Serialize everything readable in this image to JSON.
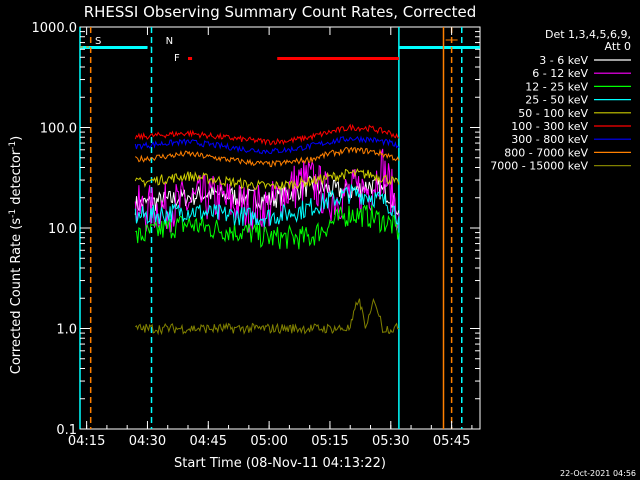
{
  "chart_data": {
    "type": "line",
    "title": "RHESSI Observing Summary Count Rates, Corrected",
    "xlabel": "Start Time (08-Nov-11 04:13:22)",
    "ylabel": "Corrected Count Rate (s⁻¹ detector⁻¹)",
    "ylabel_main": "Corrected Count Rate (s",
    "ylabel_sup1": "-1",
    "ylabel_mid": " detector",
    "ylabel_sup2": "-1",
    "ylabel_end": ")",
    "yscale": "log",
    "ylim": [
      0.1,
      1000
    ],
    "xlim": [
      "04:13:22",
      "05:52:00"
    ],
    "xticks": [
      "04:15",
      "04:30",
      "04:45",
      "05:00",
      "05:15",
      "05:30",
      "05:45"
    ],
    "yticks": [
      "0.1",
      "1.0",
      "10.0",
      "100.0",
      "1000.0"
    ],
    "legend_header": [
      "Det 1,3,4,5,6,9,",
      "Att 0"
    ],
    "legend_position": "top-right, outside plot",
    "series": [
      {
        "name": "3 - 6 keV",
        "color": "#ffffff",
        "t": [
          "04:27",
          "04:35",
          "04:45",
          "04:55",
          "05:00",
          "05:05",
          "05:10",
          "05:15",
          "05:20",
          "05:25",
          "05:30",
          "05:32"
        ],
        "values": [
          17,
          19,
          22,
          20,
          19,
          22,
          26,
          24,
          23,
          27,
          21,
          15
        ]
      },
      {
        "name": "6 - 12 keV",
        "color": "#ff00ff",
        "t": [
          "04:27",
          "04:35",
          "04:45",
          "04:55",
          "05:00",
          "05:05",
          "05:10",
          "05:15",
          "05:20",
          "05:25",
          "05:28",
          "05:32"
        ],
        "values": [
          15,
          16,
          20,
          16,
          16,
          25,
          30,
          20,
          22,
          25,
          40,
          14
        ]
      },
      {
        "name": "12 - 25 keV",
        "color": "#00ff00",
        "t": [
          "04:27",
          "04:35",
          "04:40",
          "04:45",
          "04:55",
          "05:00",
          "05:05",
          "05:10",
          "05:15",
          "05:20",
          "05:25",
          "05:30",
          "05:32"
        ],
        "values": [
          8,
          10,
          11,
          10,
          9,
          8,
          8,
          8,
          11,
          14,
          13,
          11,
          9
        ]
      },
      {
        "name": "25 - 50 keV",
        "color": "#00ffff",
        "t": [
          "04:27",
          "04:35",
          "04:40",
          "04:45",
          "04:55",
          "05:00",
          "05:05",
          "05:10",
          "05:15",
          "05:20",
          "05:25",
          "05:30",
          "05:32"
        ],
        "values": [
          13,
          14,
          15,
          14,
          13,
          13,
          14,
          16,
          19,
          22,
          21,
          17,
          13
        ]
      },
      {
        "name": "50 - 100 keV",
        "color": "#cccc00",
        "t": [
          "04:27",
          "04:35",
          "04:40",
          "04:45",
          "04:55",
          "05:00",
          "05:05",
          "05:10",
          "05:15",
          "05:20",
          "05:25",
          "05:30",
          "05:32"
        ],
        "values": [
          28,
          31,
          33,
          31,
          27,
          26,
          27,
          29,
          32,
          35,
          34,
          30,
          27
        ]
      },
      {
        "name": "100 - 300 keV",
        "color": "#ff0000",
        "t": [
          "04:27",
          "04:35",
          "04:40",
          "04:45",
          "04:55",
          "05:00",
          "05:05",
          "05:10",
          "05:15",
          "05:20",
          "05:25",
          "05:30",
          "05:32"
        ],
        "values": [
          80,
          85,
          88,
          83,
          75,
          72,
          74,
          80,
          90,
          100,
          98,
          88,
          78
        ]
      },
      {
        "name": "300 - 800 keV",
        "color": "#0000ff",
        "t": [
          "04:27",
          "04:35",
          "04:40",
          "04:45",
          "04:55",
          "05:00",
          "05:05",
          "05:10",
          "05:15",
          "05:20",
          "05:25",
          "05:30",
          "05:32"
        ],
        "values": [
          65,
          70,
          72,
          68,
          60,
          58,
          60,
          65,
          72,
          78,
          76,
          70,
          63
        ]
      },
      {
        "name": "800 - 7000 keV",
        "color": "#ff8000",
        "t": [
          "04:27",
          "04:35",
          "04:40",
          "04:45",
          "04:55",
          "05:00",
          "05:05",
          "05:10",
          "05:15",
          "05:20",
          "05:25",
          "05:30",
          "05:32"
        ],
        "values": [
          48,
          52,
          55,
          51,
          45,
          43,
          45,
          48,
          55,
          60,
          58,
          52,
          47
        ]
      },
      {
        "name": "7000 - 15000 keV",
        "color": "#808000",
        "t": [
          "04:27",
          "04:40",
          "04:45",
          "04:55",
          "05:00",
          "05:05",
          "05:10",
          "05:15",
          "05:20",
          "05:22",
          "05:24",
          "05:26",
          "05:28",
          "05:30",
          "05:32"
        ],
        "values": [
          1.0,
          1.0,
          1.0,
          1.0,
          1.0,
          1.0,
          1.0,
          1.0,
          1.0,
          2.0,
          1.0,
          2.0,
          1.0,
          1.0,
          1.0
        ]
      }
    ],
    "markers": [
      {
        "label": "S",
        "color": "#ff8000",
        "t_start": "04:13:22",
        "t_end": "04:16:00"
      },
      {
        "label": "N",
        "color": "#00ffff",
        "t_start": "04:16:00",
        "t_end": "04:31:00"
      }
    ],
    "flare_marks": [
      {
        "label": "F",
        "color": "#ff0000",
        "t_start": "04:40:00",
        "t_end": "04:41:00"
      },
      {
        "label": "",
        "color": "#ff0000",
        "t_start": "05:02:00",
        "t_end": "05:32:00"
      }
    ],
    "night_bars": [
      {
        "color": "#00ffff",
        "t_start": "04:13:22",
        "t_end": "04:30:00"
      },
      {
        "color": "#00ffff",
        "t_start": "05:32:00",
        "t_end": "05:52:00"
      }
    ],
    "vlines": [
      {
        "color": "#00ffff",
        "t": "04:13:22",
        "style": "solid"
      },
      {
        "color": "#ff8000",
        "t": "04:16:00",
        "style": "dashed"
      },
      {
        "color": "#00ffff",
        "t": "04:31:00",
        "style": "dashed"
      },
      {
        "color": "#00ffff",
        "t": "05:32:00",
        "style": "solid"
      },
      {
        "color": "#ff8000",
        "t": "05:43:00",
        "style": "solid"
      },
      {
        "color": "#ff8000",
        "t": "05:45:00",
        "style": "dashed"
      },
      {
        "color": "#00ffff",
        "t": "05:47:30",
        "style": "dashed"
      }
    ],
    "end_markers": [
      {
        "label": "",
        "color": "#ff8000",
        "t": "05:45:00"
      }
    ],
    "grid": false
  },
  "footer": {
    "timestamp": "22-Oct-2021 04:56"
  }
}
